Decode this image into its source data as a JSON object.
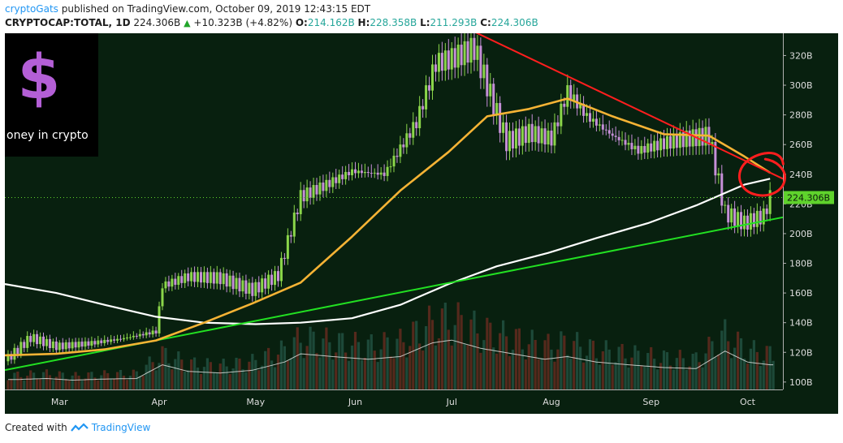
{
  "header": {
    "author": "cryptoGats",
    "published": "published on TradingView.com, October 09, 2019 12:43:15 EDT",
    "symbol": "CRYPTOCAP:TOTAL, 1D",
    "last": "224.306B",
    "change": "+10.323B (+4.82%)",
    "open_label": "O:",
    "open": "214.162B",
    "high_label": "H:",
    "high": "228.358B",
    "low_label": "L:",
    "low": "211.293B",
    "close_label": "C:",
    "close": "224.306B"
  },
  "overlay": {
    "logo_glyph": "$",
    "tagline": "oney in crypto"
  },
  "footer": {
    "created_with": "Created with",
    "brand": "TradingView"
  },
  "colors": {
    "background": "#08200f",
    "up_candle": "#8bd64a",
    "down_candle": "#c68fd8",
    "ma_fast": "#f5b335",
    "ma_slow": "#ffffff",
    "resistance_line": "#ff1e1e",
    "support_line": "#22e022",
    "price_marker": "#5fd32c",
    "annotation_circle": "#ff1e1e",
    "logo": "#b45fd6"
  },
  "chart_data": {
    "type": "candlestick",
    "title": "",
    "xlabel": "",
    "ylabel": "",
    "ylim": [
      95,
      335
    ],
    "y_ticks": [
      "100B",
      "120B",
      "140B",
      "160B",
      "180B",
      "200B",
      "220B",
      "240B",
      "260B",
      "280B",
      "300B",
      "320B"
    ],
    "x_ticks": [
      "Mar",
      "Apr",
      "May",
      "Jun",
      "Jul",
      "Aug",
      "Sep",
      "Oct"
    ],
    "last_price_label": "224.306B",
    "last_price": 224.306,
    "grid": false,
    "series": [
      {
        "kind": "close",
        "points": [
          [
            "2019-02-12",
            114
          ],
          [
            "2019-02-20",
            130
          ],
          [
            "2019-02-28",
            124
          ],
          [
            "2019-03-10",
            126
          ],
          [
            "2019-03-20",
            129
          ],
          [
            "2019-03-31",
            134
          ],
          [
            "2019-04-02",
            165
          ],
          [
            "2019-04-10",
            171
          ],
          [
            "2019-04-20",
            170
          ],
          [
            "2019-04-30",
            162
          ],
          [
            "2019-05-08",
            172
          ],
          [
            "2019-05-15",
            225
          ],
          [
            "2019-05-22",
            232
          ],
          [
            "2019-05-31",
            242
          ],
          [
            "2019-06-10",
            240
          ],
          [
            "2019-06-20",
            275
          ],
          [
            "2019-06-26",
            315
          ],
          [
            "2019-07-01",
            318
          ],
          [
            "2019-07-08",
            325
          ],
          [
            "2019-07-12",
            300
          ],
          [
            "2019-07-18",
            262
          ],
          [
            "2019-07-25",
            268
          ],
          [
            "2019-08-01",
            264
          ],
          [
            "2019-08-06",
            296
          ],
          [
            "2019-08-12",
            279
          ],
          [
            "2019-08-20",
            266
          ],
          [
            "2019-08-28",
            256
          ],
          [
            "2019-09-05",
            261
          ],
          [
            "2019-09-12",
            264
          ],
          [
            "2019-09-19",
            266
          ],
          [
            "2019-09-24",
            214
          ],
          [
            "2019-09-30",
            207
          ],
          [
            "2019-10-06",
            212
          ],
          [
            "2019-10-08",
            224.3
          ]
        ]
      },
      {
        "kind": "moving_average_fast",
        "points": [
          [
            "2019-02-12",
            118
          ],
          [
            "2019-02-28",
            119
          ],
          [
            "2019-03-15",
            122
          ],
          [
            "2019-03-31",
            128
          ],
          [
            "2019-04-15",
            140
          ],
          [
            "2019-04-30",
            153
          ],
          [
            "2019-05-15",
            167
          ],
          [
            "2019-05-31",
            198
          ],
          [
            "2019-06-15",
            229
          ],
          [
            "2019-06-30",
            255
          ],
          [
            "2019-07-12",
            279
          ],
          [
            "2019-07-25",
            284
          ],
          [
            "2019-08-06",
            291
          ],
          [
            "2019-08-20",
            279
          ],
          [
            "2019-09-05",
            267
          ],
          [
            "2019-09-19",
            266
          ],
          [
            "2019-09-30",
            252
          ],
          [
            "2019-10-08",
            241
          ]
        ]
      },
      {
        "kind": "moving_average_slow",
        "points": [
          [
            "2019-02-12",
            166
          ],
          [
            "2019-02-28",
            160
          ],
          [
            "2019-03-15",
            152
          ],
          [
            "2019-03-31",
            144
          ],
          [
            "2019-04-15",
            140
          ],
          [
            "2019-05-01",
            139
          ],
          [
            "2019-05-15",
            140
          ],
          [
            "2019-05-31",
            143
          ],
          [
            "2019-06-15",
            152
          ],
          [
            "2019-06-30",
            166
          ],
          [
            "2019-07-15",
            178
          ],
          [
            "2019-07-31",
            187
          ],
          [
            "2019-08-15",
            197
          ],
          [
            "2019-08-31",
            207
          ],
          [
            "2019-09-15",
            219
          ],
          [
            "2019-09-30",
            233
          ],
          [
            "2019-10-08",
            237
          ]
        ]
      },
      {
        "kind": "trendline_resistance",
        "points": [
          [
            "2019-07-08",
            336
          ],
          [
            "2019-10-12",
            237
          ]
        ]
      },
      {
        "kind": "trendline_support",
        "points": [
          [
            "2019-02-12",
            108
          ],
          [
            "2019-10-12",
            211
          ]
        ]
      }
    ],
    "volume": {
      "scale": "relative",
      "bars": [
        [
          "2019-02-15",
          0.18,
          "up"
        ],
        [
          "2019-02-25",
          0.2,
          "down"
        ],
        [
          "2019-03-05",
          0.17,
          "up"
        ],
        [
          "2019-03-15",
          0.19,
          "down"
        ],
        [
          "2019-03-25",
          0.2,
          "up"
        ],
        [
          "2019-04-02",
          0.45,
          "up"
        ],
        [
          "2019-04-10",
          0.33,
          "down"
        ],
        [
          "2019-04-20",
          0.3,
          "up"
        ],
        [
          "2019-04-30",
          0.35,
          "down"
        ],
        [
          "2019-05-10",
          0.5,
          "up"
        ],
        [
          "2019-05-15",
          0.65,
          "up"
        ],
        [
          "2019-05-25",
          0.6,
          "down"
        ],
        [
          "2019-06-05",
          0.55,
          "down"
        ],
        [
          "2019-06-15",
          0.6,
          "up"
        ],
        [
          "2019-06-25",
          0.85,
          "up"
        ],
        [
          "2019-07-01",
          0.9,
          "down"
        ],
        [
          "2019-07-10",
          0.75,
          "down"
        ],
        [
          "2019-07-20",
          0.65,
          "up"
        ],
        [
          "2019-07-30",
          0.55,
          "down"
        ],
        [
          "2019-08-06",
          0.6,
          "up"
        ],
        [
          "2019-08-15",
          0.5,
          "down"
        ],
        [
          "2019-08-25",
          0.45,
          "down"
        ],
        [
          "2019-09-05",
          0.4,
          "up"
        ],
        [
          "2019-09-15",
          0.38,
          "down"
        ],
        [
          "2019-09-24",
          0.7,
          "down"
        ],
        [
          "2019-10-01",
          0.5,
          "up"
        ],
        [
          "2019-10-08",
          0.45,
          "up"
        ]
      ]
    },
    "annotations": [
      {
        "kind": "hand_drawn_circle",
        "date": "2019-10-04",
        "value": 236
      }
    ]
  }
}
